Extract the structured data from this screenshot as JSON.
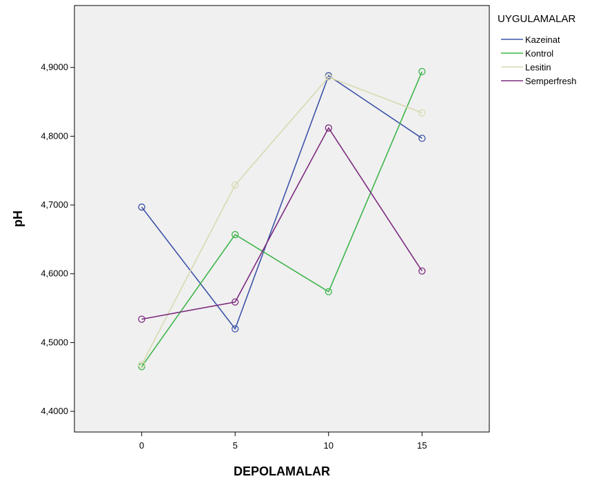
{
  "chart_data": {
    "type": "line",
    "x": [
      0,
      5,
      10,
      15
    ],
    "xlim": [
      -3.6,
      18.6
    ],
    "ylim": [
      4.37,
      4.99
    ],
    "xticks": [
      "0",
      "5",
      "10",
      "15"
    ],
    "yticks": [
      "4,4000",
      "4,5000",
      "4,6000",
      "4,7000",
      "4,8000",
      "4,9000"
    ],
    "ytick_values": [
      4.4,
      4.5,
      4.6,
      4.7,
      4.8,
      4.9
    ],
    "xlabel": "DEPOLAMALAR",
    "ylabel": "pH",
    "legend_title": "UYGULAMALAR",
    "legend_position": "right",
    "grid": false,
    "plot_background": "#f0f0f0",
    "series": [
      {
        "name": "Kazeinat",
        "color": "#3c52a8",
        "values": [
          4.697,
          4.52,
          4.888,
          4.797
        ]
      },
      {
        "name": "Kontrol",
        "color": "#3db54a",
        "values": [
          4.465,
          4.657,
          4.574,
          4.894
        ]
      },
      {
        "name": "Lesitin",
        "color": "#d8d9b0",
        "values": [
          4.468,
          4.729,
          4.886,
          4.834
        ]
      },
      {
        "name": "Semperfresh",
        "color": "#7b2a7e",
        "values": [
          4.534,
          4.559,
          4.812,
          4.604
        ]
      }
    ]
  }
}
